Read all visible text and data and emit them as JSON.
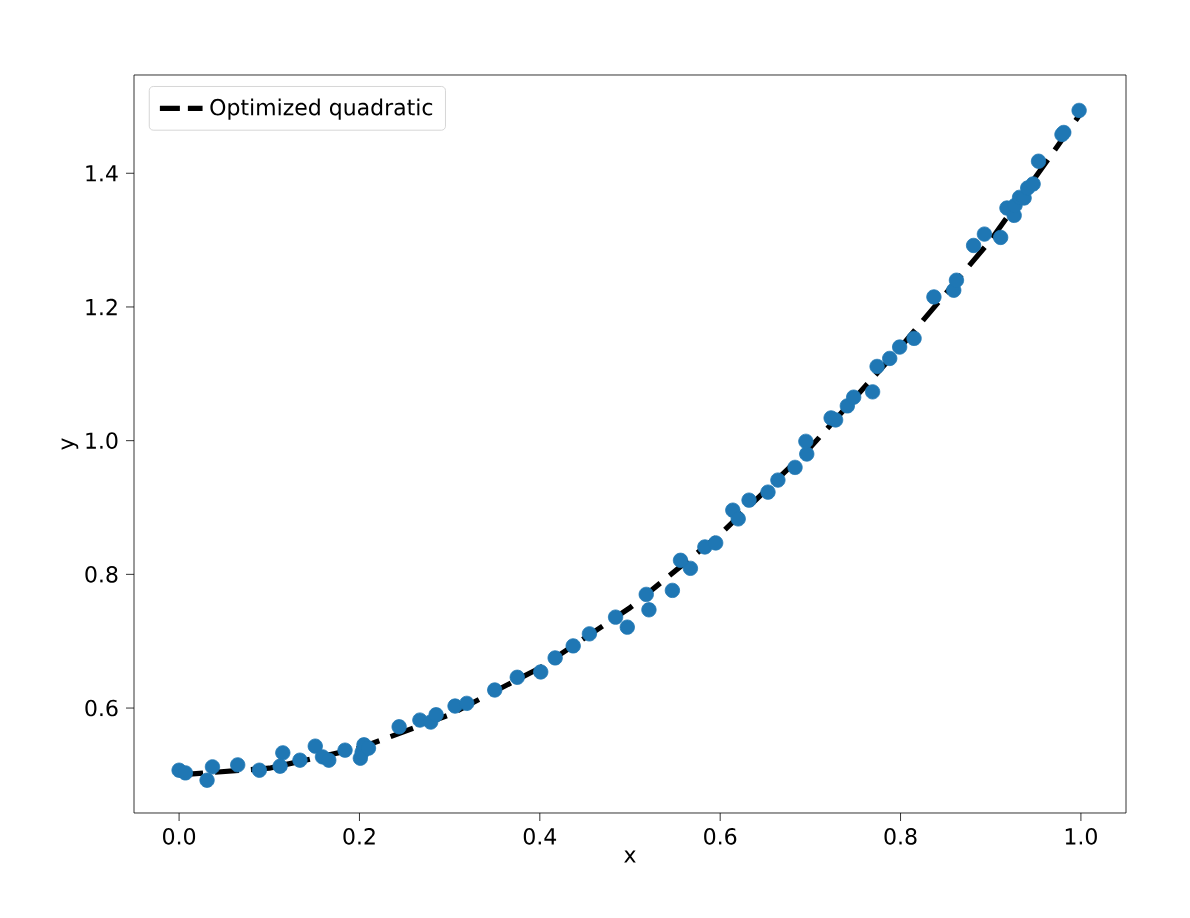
{
  "chart_data": {
    "type": "scatter",
    "xlabel": "x",
    "ylabel": "y",
    "xlim": [
      -0.05,
      1.05
    ],
    "ylim": [
      0.443,
      1.547
    ],
    "xticks": [
      {
        "value": 0,
        "label": "0.0"
      },
      {
        "value": 0.2,
        "label": "0.2"
      },
      {
        "value": 0.4,
        "label": "0.4"
      },
      {
        "value": 0.6,
        "label": "0.6"
      },
      {
        "value": 0.8,
        "label": "0.8"
      },
      {
        "value": 1,
        "label": "1.0"
      }
    ],
    "yticks": [
      {
        "value": 0.6,
        "label": "0.6"
      },
      {
        "value": 0.8,
        "label": "0.8"
      },
      {
        "value": 1,
        "label": "1.0"
      },
      {
        "value": 1.2,
        "label": "1.2"
      },
      {
        "value": 1.4,
        "label": "1.4"
      }
    ],
    "grid": false,
    "legend": "top left",
    "series": [
      {
        "color": "#1f77b4",
        "marker": "circle",
        "x": [
          0.0,
          0.007,
          0.031,
          0.037,
          0.065,
          0.089,
          0.115,
          0.112,
          0.134,
          0.151,
          0.159,
          0.166,
          0.184,
          0.201,
          0.203,
          0.205,
          0.21,
          0.244,
          0.267,
          0.279,
          0.285,
          0.306,
          0.319,
          0.35,
          0.375,
          0.401,
          0.417,
          0.437,
          0.455,
          0.484,
          0.497,
          0.518,
          0.521,
          0.547,
          0.567,
          0.556,
          0.583,
          0.595,
          0.614,
          0.62,
          0.632,
          0.653,
          0.664,
          0.683,
          0.696,
          0.695,
          0.723,
          0.728,
          0.741,
          0.748,
          0.769,
          0.774,
          0.788,
          0.799,
          0.815,
          0.837,
          0.859,
          0.862,
          0.881,
          0.893,
          0.911,
          0.918,
          0.926,
          0.927,
          0.932,
          0.937,
          0.941,
          0.947,
          0.953,
          0.979,
          0.981,
          0.998
        ],
        "values": [
          0.507,
          0.503,
          0.492,
          0.512,
          0.515,
          0.507,
          0.533,
          0.513,
          0.522,
          0.543,
          0.527,
          0.522,
          0.537,
          0.525,
          0.534,
          0.545,
          0.54,
          0.572,
          0.582,
          0.579,
          0.59,
          0.603,
          0.607,
          0.627,
          0.646,
          0.654,
          0.675,
          0.693,
          0.711,
          0.736,
          0.721,
          0.77,
          0.747,
          0.776,
          0.809,
          0.821,
          0.841,
          0.847,
          0.896,
          0.883,
          0.911,
          0.923,
          0.941,
          0.96,
          0.98,
          0.999,
          1.034,
          1.031,
          1.052,
          1.065,
          1.073,
          1.111,
          1.123,
          1.14,
          1.153,
          1.215,
          1.225,
          1.24,
          1.292,
          1.309,
          1.304,
          1.348,
          1.337,
          1.352,
          1.364,
          1.363,
          1.378,
          1.384,
          1.418,
          1.458,
          1.461,
          1.494
        ]
      },
      {
        "type": "line",
        "name": "Optimized quadratic",
        "color": "#000000",
        "line_style": "dashed",
        "marker": "none",
        "x": [
          0,
          0.1,
          0.2,
          0.3,
          0.4,
          0.5,
          0.6,
          0.7,
          0.8,
          0.9,
          1.0
        ],
        "values": [
          0.5,
          0.51,
          0.54,
          0.59,
          0.66,
          0.75,
          0.86,
          0.99,
          1.14,
          1.3,
          1.49
        ]
      }
    ]
  }
}
